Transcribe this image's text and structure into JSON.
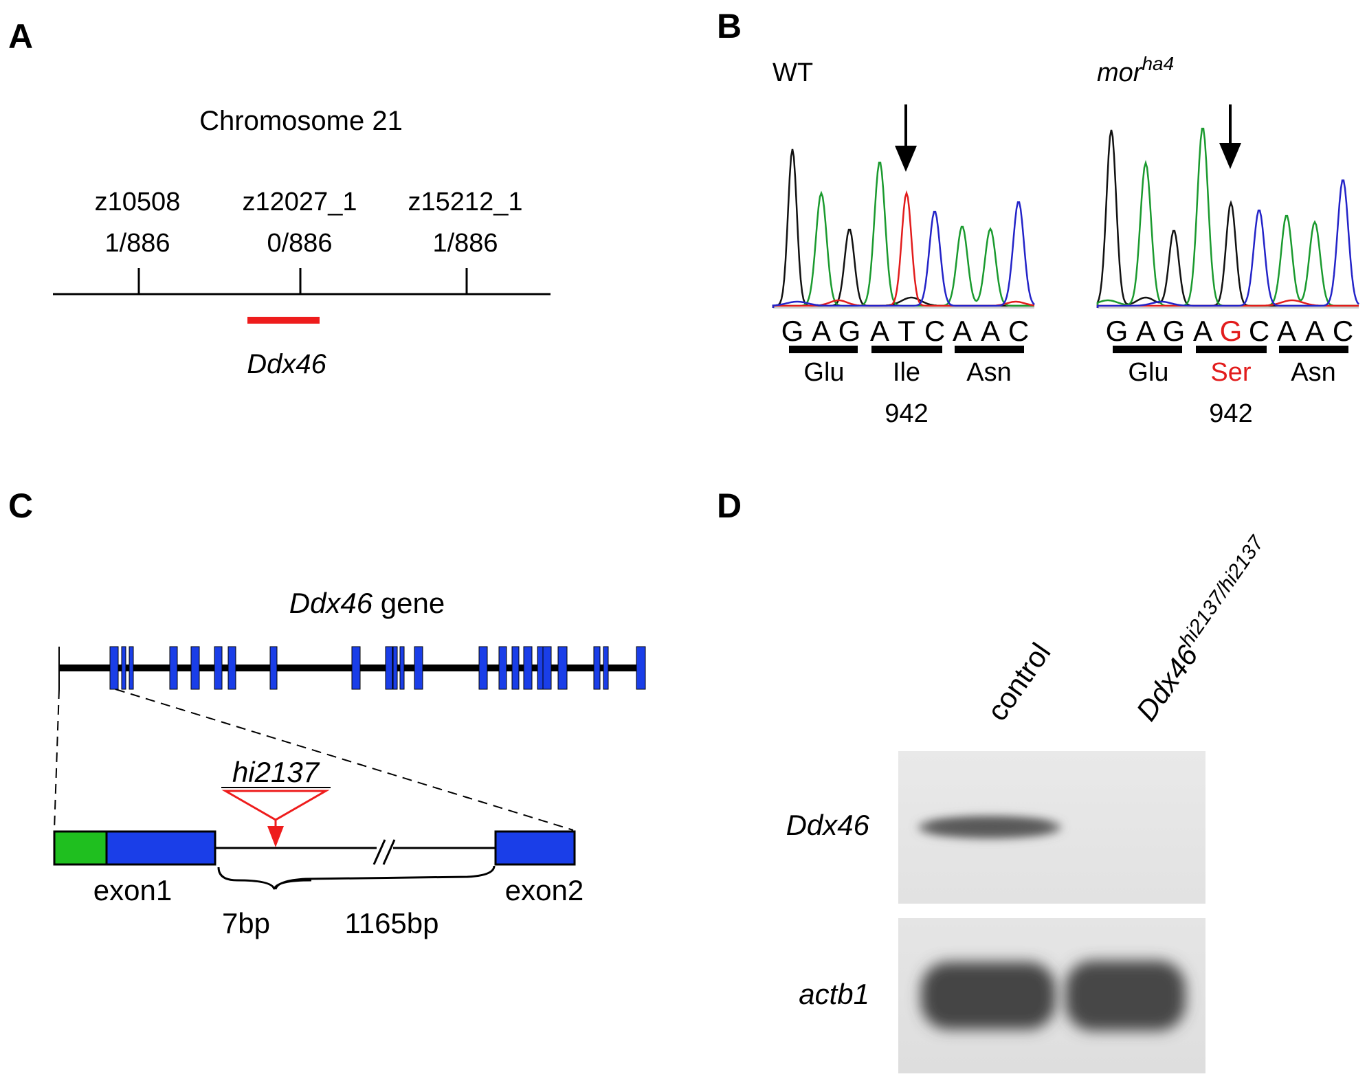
{
  "panels": {
    "a": {
      "letter": "A",
      "title": "Chromosome 21",
      "markers": [
        {
          "name": "z10508",
          "recombinants": "1/886"
        },
        {
          "name": "z12027_1",
          "recombinants": "0/886"
        },
        {
          "name": "z15212_1",
          "recombinants": "1/886"
        }
      ],
      "gene_label": "Ddx46",
      "colors": {
        "gene_bar": "#ee1c1c"
      }
    },
    "b": {
      "letter": "B",
      "wt": {
        "title": "WT",
        "bases": [
          "G",
          "A",
          "G",
          "A",
          "T",
          "C",
          "A",
          "A",
          "C"
        ],
        "codons": [
          "Glu",
          "Ile",
          "Asn"
        ],
        "position": "942"
      },
      "mutant": {
        "title_main": "mor",
        "title_sup": "ha4",
        "bases": [
          "G",
          "A",
          "G",
          "A",
          "G",
          "C",
          "A",
          "A",
          "C"
        ],
        "mutated_base_index": 4,
        "codons": [
          "Glu",
          "Ser",
          "Asn"
        ],
        "mutated_codon_index": 1,
        "position": "942"
      },
      "colors": {
        "A": "#1a9a2e",
        "C": "#2323c8",
        "G": "#111111",
        "T": "#e21c1c",
        "mutation": "#e21c1c"
      }
    },
    "c": {
      "letter": "C",
      "title_gene": "Ddx46",
      "title_rest": " gene",
      "insertion": "hi2137",
      "exon1": "exon1",
      "exon2": "exon2",
      "gap1": "7bp",
      "gap2": "1165bp",
      "colors": {
        "exon": "#1a3ee8",
        "utr": "#1fbf1f",
        "insertion": "#ee1c1c"
      }
    },
    "d": {
      "letter": "D",
      "lanes": {
        "control": "control",
        "mutant_main": "Ddx46",
        "mutant_sup": "hi2137/hi2137"
      },
      "rows": [
        "Ddx46",
        "actb1"
      ]
    }
  }
}
